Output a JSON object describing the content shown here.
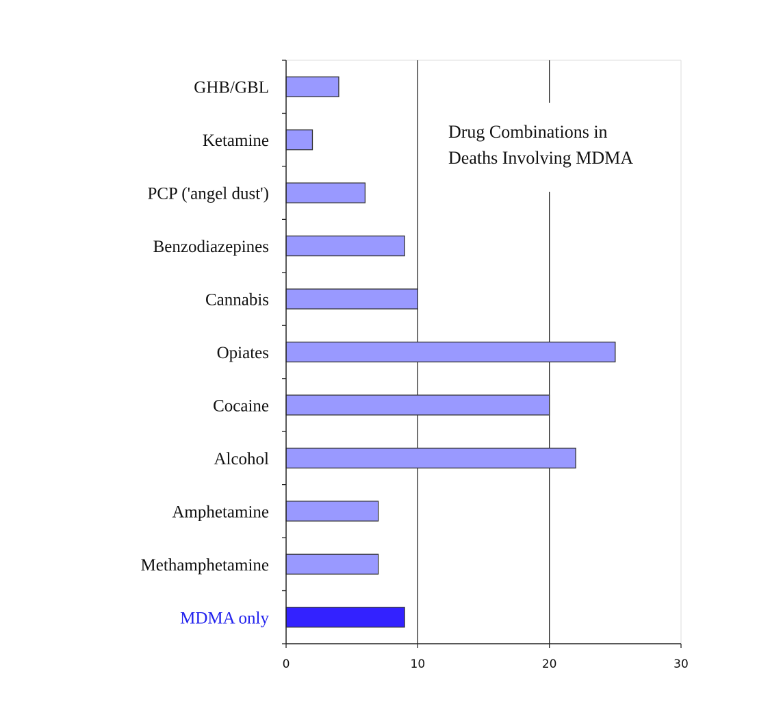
{
  "chart_data": {
    "type": "bar",
    "orientation": "horizontal",
    "title": "",
    "xlabel": "",
    "ylabel": "",
    "categories": [
      "GHB/GBL",
      "Ketamine",
      "PCP ('angel dust')",
      "Benzodiazepines",
      "Cannabis",
      "Opiates",
      "Cocaine",
      "Alcohol",
      "Amphetamine",
      "Methamphetamine",
      "MDMA only"
    ],
    "values": [
      4,
      2,
      6,
      9,
      10,
      25,
      20,
      22,
      7,
      7,
      9
    ],
    "xlim": [
      0,
      30
    ],
    "xticks": [
      "0",
      "10",
      "20",
      "30"
    ],
    "grid": "vertical",
    "annotation": [
      "Drug Combinations in",
      "Deaths Involving MDMA"
    ],
    "highlight": {
      "category": "MDMA only",
      "bar_color": "#3322ff",
      "label_color": "#2222ee"
    },
    "bar_color": "#9999ff",
    "bar_edge_color": "#333333"
  }
}
